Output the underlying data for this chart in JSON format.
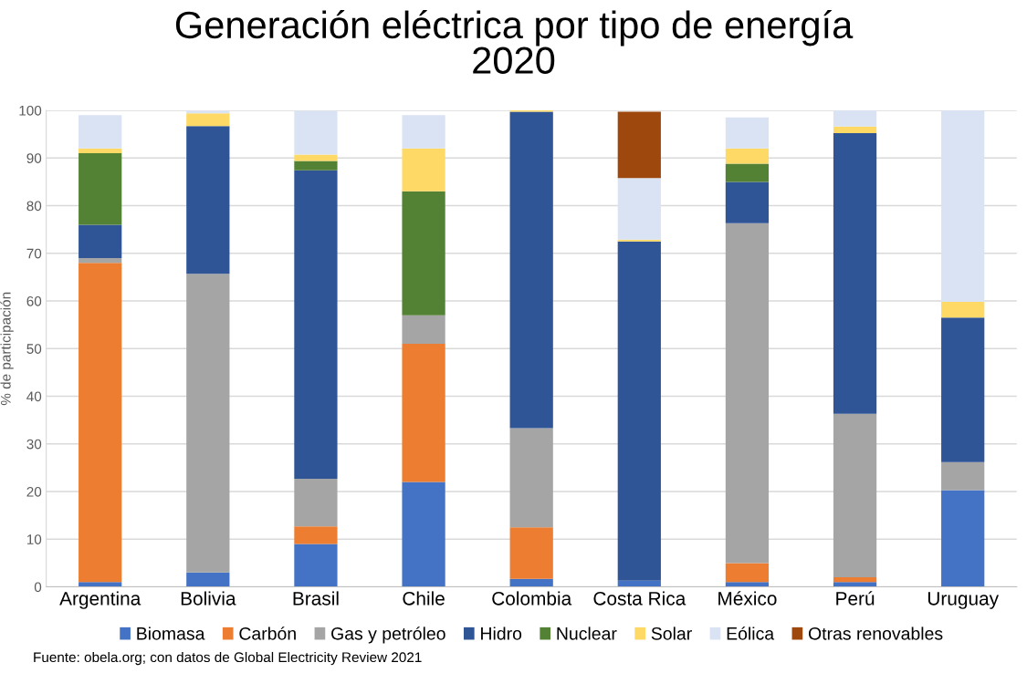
{
  "chart_data": {
    "type": "bar",
    "stacked": true,
    "title": "Generación eléctrica por tipo de energía\n2020",
    "ylabel": "% de participación",
    "categories": [
      "Argentina",
      "Bolivia",
      "Brasil",
      "Chile",
      "Colombia",
      "Costa Rica",
      "México",
      "Perú",
      "Uruguay"
    ],
    "series": [
      {
        "name": "Biomasa",
        "color": "#4472c4",
        "values": [
          1,
          3,
          9,
          22,
          1.7,
          1.3,
          1,
          1,
          20.3
        ]
      },
      {
        "name": "Carbón",
        "color": "#ed7d31",
        "values": [
          67,
          0,
          3.7,
          29,
          10.8,
          0,
          4,
          1,
          0
        ]
      },
      {
        "name": "Gas y petróleo",
        "color": "#a5a5a5",
        "values": [
          1,
          62.7,
          10,
          6,
          20.8,
          0,
          71.3,
          34.3,
          5.9
        ]
      },
      {
        "name": "Hidro",
        "color": "#2f5597",
        "values": [
          7,
          31,
          64.7,
          0,
          66.4,
          71.2,
          8.7,
          58.9,
          30.3
        ]
      },
      {
        "name": "Nuclear",
        "color": "#548235",
        "values": [
          15,
          0,
          2,
          26,
          0,
          0,
          3.8,
          0,
          0
        ]
      },
      {
        "name": "Solar",
        "color": "#ffd966",
        "values": [
          1,
          2.7,
          1.3,
          9,
          0.3,
          0.4,
          3.2,
          1.4,
          3.3
        ]
      },
      {
        "name": "Eólica",
        "color": "#dae3f3",
        "values": [
          7,
          0.5,
          9.2,
          7,
          0,
          12.9,
          6.5,
          3.4,
          40.2
        ]
      },
      {
        "name": "Otras renovables",
        "color": "#9e480e",
        "values": [
          0,
          0,
          0,
          0,
          0,
          13.9,
          0,
          0,
          0
        ]
      }
    ],
    "ylim": [
      0,
      100
    ],
    "yticks": [
      0,
      10,
      20,
      30,
      40,
      50,
      60,
      70,
      80,
      90,
      100
    ],
    "grid": "y",
    "legend": "bottom",
    "annotations": [
      "Fuente: obela.org; con datos de Global Electricity Review 2021"
    ]
  }
}
